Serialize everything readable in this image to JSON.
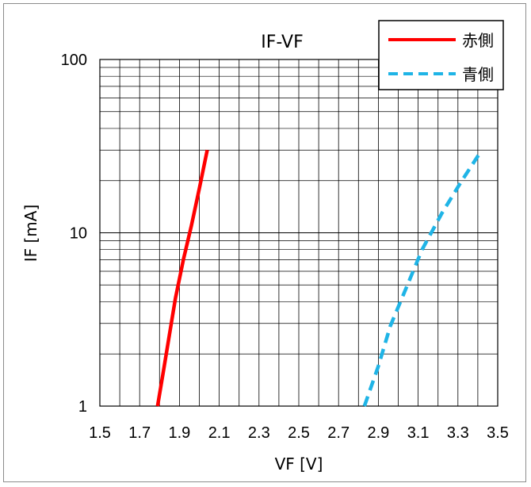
{
  "chart_data": {
    "type": "line",
    "title": "IF-VF",
    "xlabel": "VF [V]",
    "ylabel": "IF [mA]",
    "xlim": [
      1.5,
      3.5
    ],
    "ylim": [
      1,
      100
    ],
    "y_scale": "log",
    "x_ticks": [
      "1.5",
      "1.7",
      "1.9",
      "2.1",
      "2.3",
      "2.5",
      "2.7",
      "2.9",
      "3.1",
      "3.3",
      "3.5"
    ],
    "y_ticks": [
      "1",
      "10",
      "100"
    ],
    "grid": true,
    "legend_position": "top-right",
    "series": [
      {
        "name": "赤側",
        "color": "#ff0000",
        "style": "solid",
        "x": [
          1.79,
          1.82,
          1.85,
          1.88,
          1.92,
          1.96,
          2.0,
          2.04
        ],
        "y": [
          1,
          1.6,
          2.6,
          4.2,
          7,
          11,
          18,
          30
        ]
      },
      {
        "name": "青側",
        "color": "#1fb4e6",
        "style": "dashed",
        "x": [
          2.83,
          2.9,
          2.96,
          3.04,
          3.12,
          3.22,
          3.32,
          3.42
        ],
        "y": [
          1,
          1.7,
          2.9,
          4.8,
          8,
          13,
          20,
          30
        ]
      }
    ]
  }
}
